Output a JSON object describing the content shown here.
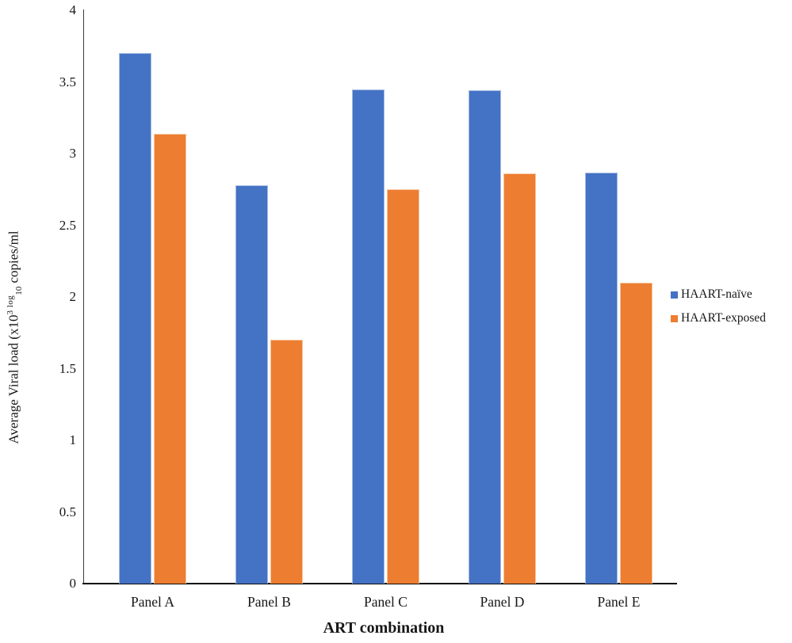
{
  "chart_data": {
    "type": "bar",
    "title": "",
    "categories": [
      "Panel A",
      "Panel B",
      "Panel C",
      "Panel D",
      "Panel E"
    ],
    "series": [
      {
        "name": "HAART-naïve",
        "color": "#4472C4",
        "edge_color": "#A3BBE0",
        "values": [
          3.7,
          2.78,
          3.45,
          3.44,
          2.87
        ]
      },
      {
        "name": "HAART-exposed",
        "color": "#ED7D31",
        "edge_color": "#F6C69E",
        "values": [
          3.14,
          1.7,
          2.75,
          2.86,
          2.1
        ]
      }
    ],
    "xlabel": "ART combination",
    "ylabel": "Average Viral load (x10^3 log_10 copies/ml",
    "ylabel_parts": {
      "prefix": "Average Viral load (x10",
      "sup": "3 log",
      "sub": "10",
      "suffix": " copies/ml"
    },
    "ylim": [
      0,
      4
    ],
    "yticks": [
      0,
      0.5,
      1,
      1.5,
      2,
      2.5,
      3,
      3.5,
      4
    ],
    "grid": false,
    "legend_position": "right"
  }
}
